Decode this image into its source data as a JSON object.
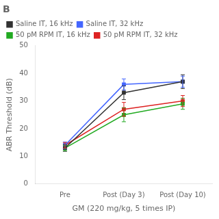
{
  "chart_data": {
    "type": "line",
    "title": "B",
    "xlabel": "GM (220 mg/kg, 5 times IP)",
    "ylabel": "ABR Threshold (dB)",
    "categories": [
      "Pre",
      "Post (Day 3)",
      "Post (Day 10)"
    ],
    "series": [
      {
        "name": "Saline IT, 16 kHz",
        "color": "#333333",
        "marker": "square",
        "values": [
          13,
          33,
          37
        ],
        "yerr": [
          1.2,
          2.5,
          2.5
        ]
      },
      {
        "name": "Saline IT, 32 kHz",
        "color": "#4466ff",
        "marker": "square",
        "values": [
          14,
          36,
          37
        ],
        "yerr": [
          1.2,
          2.0,
          2.0
        ]
      },
      {
        "name": "50 pM RPM IT, 16 kHz",
        "color": "#22aa22",
        "marker": "square",
        "values": [
          13,
          25,
          29
        ],
        "yerr": [
          1.0,
          2.5,
          2.0
        ]
      },
      {
        "name": "50 pM RPM IT, 32 kHz",
        "color": "#dd2222",
        "marker": "square",
        "values": [
          14,
          27,
          30
        ],
        "yerr": [
          1.0,
          2.5,
          2.0
        ]
      }
    ],
    "ylim": [
      0,
      50
    ],
    "yticks": [
      0,
      10,
      20,
      30,
      40,
      50
    ],
    "grid": false,
    "legend": "upper left"
  }
}
